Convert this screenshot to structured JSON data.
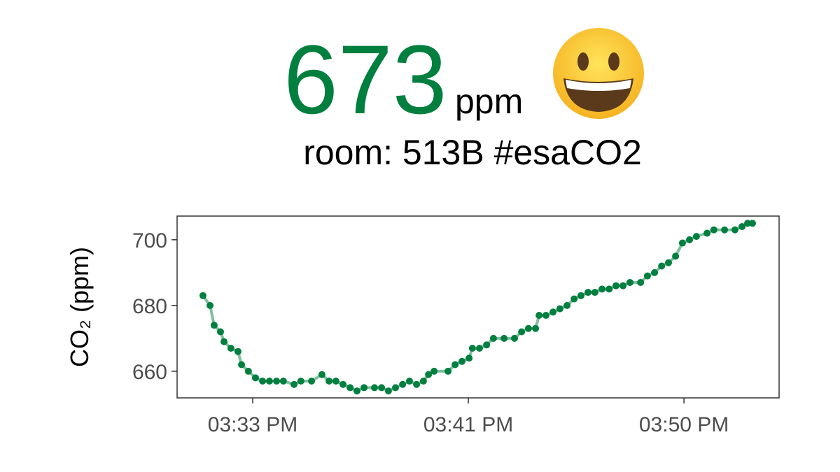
{
  "header": {
    "value": 673,
    "unit": "ppm",
    "room": "room: 513B #esaCO2"
  },
  "chart_data": {
    "type": "line",
    "y_label": "CO₂ (ppm)",
    "x": [
      31.04,
      31.32,
      31.48,
      31.73,
      31.87,
      32.14,
      32.42,
      32.56,
      32.83,
      33.11,
      33.39,
      33.66,
      33.94,
      34.21,
      34.63,
      34.9,
      35.32,
      35.73,
      36.01,
      36.28,
      36.56,
      36.84,
      37.11,
      37.39,
      37.8,
      38.08,
      38.35,
      38.63,
      38.91,
      39.18,
      39.46,
      39.73,
      39.93,
      40.15,
      40.7,
      40.98,
      41.25,
      41.53,
      41.66,
      41.94,
      42.22,
      42.49,
      42.91,
      43.32,
      43.6,
      43.87,
      44.15,
      44.29,
      44.56,
      44.84,
      45.11,
      45.39,
      45.67,
      45.94,
      46.22,
      46.49,
      46.77,
      47.05,
      47.32,
      47.6,
      47.87,
      48.29,
      48.56,
      48.84,
      49.12,
      49.39,
      49.67,
      49.94,
      50.22,
      50.49,
      50.91,
      51.18,
      51.6,
      52.01,
      52.29,
      52.51,
      52.7
    ],
    "series": [
      {
        "color": "#007f3f",
        "values": [
          683,
          680,
          674,
          672,
          669,
          667,
          666,
          662,
          660,
          658,
          657,
          657,
          657,
          657,
          656,
          657,
          657,
          659,
          657,
          657,
          656,
          655,
          654,
          655,
          655,
          655,
          654,
          655,
          656,
          657,
          656,
          657,
          659,
          660,
          660,
          662,
          663,
          664,
          667,
          667,
          668,
          670,
          670,
          670,
          672,
          673,
          673,
          677,
          677,
          678,
          679,
          680,
          682,
          683,
          684,
          684,
          685,
          685,
          686,
          686,
          687,
          687,
          689,
          690,
          692,
          693,
          695,
          699,
          700,
          701,
          702,
          703,
          703,
          703,
          704,
          705,
          705
        ]
      }
    ],
    "xlim": [
      30.02,
      53.75
    ],
    "xticks": [
      {
        "value": 33,
        "label": "03:33 PM"
      },
      {
        "value": 41.5,
        "label": "03:41 PM"
      },
      {
        "value": 50,
        "label": "03:50 PM"
      }
    ],
    "ylim": [
      651.9,
      707.2
    ],
    "yticks": [
      660,
      680,
      700
    ],
    "grid": false
  }
}
